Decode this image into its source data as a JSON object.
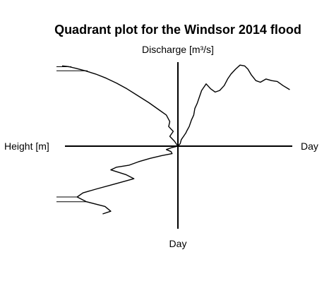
{
  "chart_data": {
    "type": "line",
    "title": "Quadrant plot for the Windsor 2014 flood",
    "labels": {
      "top": "Discharge [m³/s]",
      "left": "Height [m]",
      "right": "Day",
      "bottom": "Day"
    },
    "axes": {
      "height_m": [
        0,
        1
      ],
      "discharge_rel": [
        0,
        1
      ],
      "day_rel": [
        0,
        1
      ],
      "axis_ticks_printed": false
    },
    "reference_lines_height": [
      0.78,
      0.92
    ],
    "series": [
      {
        "panel": "top-right",
        "x_is": "day",
        "y_is": "discharge",
        "points": [
          [
            0.0,
            0.0
          ],
          [
            0.02,
            0.03
          ],
          [
            0.03,
            0.08
          ],
          [
            0.05,
            0.12
          ],
          [
            0.07,
            0.16
          ],
          [
            0.08,
            0.19
          ],
          [
            0.1,
            0.24
          ],
          [
            0.12,
            0.32
          ],
          [
            0.14,
            0.38
          ],
          [
            0.15,
            0.46
          ],
          [
            0.17,
            0.52
          ],
          [
            0.19,
            0.6
          ],
          [
            0.21,
            0.68
          ],
          [
            0.23,
            0.72
          ],
          [
            0.25,
            0.76
          ],
          [
            0.29,
            0.7
          ],
          [
            0.33,
            0.66
          ],
          [
            0.37,
            0.68
          ],
          [
            0.41,
            0.74
          ],
          [
            0.44,
            0.82
          ],
          [
            0.47,
            0.88
          ],
          [
            0.51,
            0.94
          ],
          [
            0.55,
            0.99
          ],
          [
            0.59,
            0.98
          ],
          [
            0.62,
            0.94
          ],
          [
            0.65,
            0.87
          ],
          [
            0.69,
            0.8
          ],
          [
            0.73,
            0.78
          ],
          [
            0.78,
            0.82
          ],
          [
            0.83,
            0.8
          ],
          [
            0.88,
            0.79
          ],
          [
            0.93,
            0.74
          ],
          [
            0.99,
            0.69
          ]
        ]
      },
      {
        "panel": "top-left",
        "x_is": "height",
        "y_is": "discharge",
        "points": [
          [
            1.0,
            0.98
          ],
          [
            0.94,
            0.97
          ],
          [
            0.88,
            0.95
          ],
          [
            0.8,
            0.92
          ],
          [
            0.71,
            0.88
          ],
          [
            0.62,
            0.83
          ],
          [
            0.53,
            0.77
          ],
          [
            0.44,
            0.7
          ],
          [
            0.35,
            0.62
          ],
          [
            0.25,
            0.53
          ],
          [
            0.16,
            0.44
          ],
          [
            0.1,
            0.38
          ],
          [
            0.07,
            0.3
          ],
          [
            0.08,
            0.24
          ],
          [
            0.04,
            0.18
          ],
          [
            0.07,
            0.12
          ],
          [
            0.03,
            0.06
          ],
          [
            0.0,
            0.0
          ]
        ]
      },
      {
        "panel": "bottom-left",
        "x_is": "height",
        "y_is": "day",
        "points": [
          [
            0.0,
            0.0
          ],
          [
            0.05,
            0.02
          ],
          [
            0.1,
            0.05
          ],
          [
            0.06,
            0.08
          ],
          [
            0.05,
            0.11
          ],
          [
            0.14,
            0.14
          ],
          [
            0.24,
            0.18
          ],
          [
            0.34,
            0.23
          ],
          [
            0.42,
            0.28
          ],
          [
            0.53,
            0.31
          ],
          [
            0.58,
            0.35
          ],
          [
            0.45,
            0.42
          ],
          [
            0.38,
            0.48
          ],
          [
            0.55,
            0.56
          ],
          [
            0.7,
            0.63
          ],
          [
            0.82,
            0.69
          ],
          [
            0.87,
            0.75
          ],
          [
            0.79,
            0.82
          ],
          [
            0.63,
            0.89
          ],
          [
            0.58,
            0.96
          ],
          [
            0.65,
            1.0
          ]
        ]
      }
    ]
  }
}
